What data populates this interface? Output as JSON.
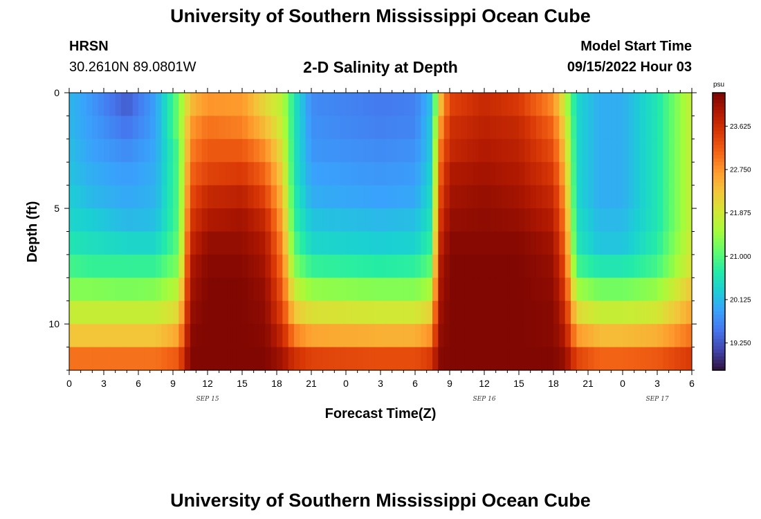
{
  "page": {
    "title": "University of Southern Mississippi Ocean Cube",
    "station": "HRSN",
    "coords": "30.2610N  89.0801W",
    "plot_title": "2-D Salinity at Depth",
    "model_start_label": "Model Start Time",
    "model_start_value": "09/15/2022 Hour 03",
    "footer_title": "University of Southern Mississippi Ocean Cube"
  },
  "chart_data": {
    "type": "heatmap",
    "title": "2-D Salinity at Depth",
    "xlabel": "Forecast Time(Z)",
    "ylabel": "Depth (ft)",
    "x_tick_labels": [
      "0",
      "3",
      "6",
      "9",
      "12",
      "15",
      "18",
      "21",
      "0",
      "3",
      "6",
      "9",
      "12",
      "15",
      "18",
      "21",
      "0",
      "3",
      "6"
    ],
    "date_labels": [
      {
        "label": "SEP 15",
        "hour": 12
      },
      {
        "label": "SEP 16",
        "hour": 36
      },
      {
        "label": "SEP 17",
        "hour": 51
      }
    ],
    "y_tick_labels": [
      "0",
      "5",
      "10"
    ],
    "y_ticks": [
      0,
      5,
      10
    ],
    "y_range": [
      0,
      12
    ],
    "x_range_hours": [
      0,
      54
    ],
    "colorbar": {
      "unit": "psu",
      "labels": [
        "23.625",
        "22.750",
        "21.875",
        "21.000",
        "20.125",
        "19.250"
      ],
      "levels": [
        23.625,
        22.75,
        21.875,
        21.0,
        20.125,
        19.25
      ],
      "range": [
        18.7,
        24.3
      ],
      "colors": [
        "#30123b",
        "#4145ab",
        "#4675ed",
        "#39a2fc",
        "#1bcfd4",
        "#24eca6",
        "#61fc6c",
        "#a4fc3b",
        "#d1e834",
        "#f3c63a",
        "#fe9b2d",
        "#f36315",
        "#d93806",
        "#b11901",
        "#7a0402"
      ]
    },
    "depth_levels_ft": [
      0.5,
      1.5,
      2.5,
      3.5,
      4.5,
      5.5,
      6.5,
      7.5,
      8.5,
      9.5,
      10.5,
      11.5
    ],
    "time_keypoints_hours": [
      0,
      2,
      5,
      7.5,
      9.5,
      10.5,
      12,
      15,
      17,
      18.5,
      19.5,
      21,
      27,
      30,
      31.5,
      32,
      33,
      36,
      39,
      42,
      43,
      44,
      46,
      48,
      51,
      54
    ],
    "salinity_psu": [
      [
        20.1,
        19.8,
        19.3,
        19.9,
        21.2,
        22.4,
        22.75,
        22.7,
        22.1,
        21.7,
        20.6,
        19.7,
        19.55,
        19.6,
        20.2,
        22.1,
        23.4,
        23.7,
        23.5,
        22.8,
        21.8,
        20.4,
        20.0,
        20.0,
        20.6,
        21.8
      ],
      [
        20.1,
        19.85,
        19.5,
        19.9,
        21.2,
        22.7,
        23.0,
        22.9,
        22.4,
        21.8,
        20.6,
        19.75,
        19.6,
        19.65,
        20.3,
        22.5,
        23.6,
        23.8,
        23.7,
        23.1,
        22.1,
        20.4,
        20.0,
        20.0,
        20.6,
        21.8
      ],
      [
        20.15,
        19.9,
        19.7,
        19.95,
        21.0,
        22.9,
        23.2,
        23.2,
        22.8,
        22.0,
        20.6,
        19.8,
        19.7,
        19.75,
        20.3,
        22.8,
        23.7,
        23.9,
        23.8,
        23.3,
        22.3,
        20.4,
        20.0,
        20.0,
        20.6,
        21.8
      ],
      [
        20.2,
        20.0,
        19.85,
        20.0,
        21.0,
        23.1,
        23.4,
        23.5,
        23.1,
        22.2,
        20.6,
        19.9,
        19.8,
        19.85,
        20.4,
        23.0,
        23.9,
        24.0,
        23.9,
        23.5,
        22.5,
        20.4,
        20.0,
        20.0,
        20.6,
        21.8
      ],
      [
        20.3,
        20.1,
        19.95,
        20.05,
        21.0,
        23.3,
        23.7,
        23.8,
        23.4,
        22.4,
        20.7,
        20.0,
        19.9,
        19.95,
        20.5,
        23.2,
        24.0,
        24.1,
        24.0,
        23.7,
        22.7,
        20.4,
        20.0,
        20.0,
        20.6,
        21.8
      ],
      [
        20.4,
        20.3,
        20.1,
        20.15,
        21.0,
        23.5,
        23.9,
        24.0,
        23.7,
        22.6,
        20.8,
        20.2,
        20.1,
        20.15,
        20.6,
        23.4,
        24.1,
        24.15,
        24.1,
        23.85,
        22.9,
        20.5,
        20.1,
        20.1,
        20.6,
        21.8
      ],
      [
        20.6,
        20.5,
        20.4,
        20.4,
        21.1,
        23.7,
        24.1,
        24.1,
        23.9,
        22.8,
        21.0,
        20.4,
        20.3,
        20.35,
        20.8,
        23.6,
        24.2,
        24.2,
        24.2,
        24.0,
        23.1,
        20.6,
        20.2,
        20.2,
        20.7,
        21.9
      ],
      [
        20.9,
        20.8,
        20.8,
        20.8,
        21.3,
        23.9,
        24.2,
        24.2,
        24.0,
        23.0,
        21.3,
        20.8,
        20.7,
        20.75,
        21.1,
        23.8,
        24.25,
        24.25,
        24.25,
        24.1,
        23.3,
        20.9,
        20.6,
        20.6,
        20.9,
        22.0
      ],
      [
        21.3,
        21.3,
        21.25,
        21.3,
        21.7,
        24.0,
        24.25,
        24.25,
        24.1,
        23.2,
        21.8,
        21.4,
        21.3,
        21.3,
        21.6,
        23.9,
        24.25,
        24.25,
        24.25,
        24.15,
        23.5,
        21.5,
        21.2,
        21.2,
        21.4,
        22.3
      ],
      [
        21.8,
        21.8,
        21.8,
        21.8,
        22.1,
        24.1,
        24.25,
        24.25,
        24.15,
        23.4,
        22.3,
        22.0,
        21.9,
        21.9,
        22.2,
        24.0,
        24.25,
        24.25,
        24.25,
        24.2,
        23.7,
        22.1,
        21.8,
        21.8,
        21.9,
        22.6
      ],
      [
        22.3,
        22.3,
        22.3,
        22.3,
        22.6,
        24.2,
        24.25,
        24.25,
        24.2,
        23.7,
        22.9,
        22.6,
        22.5,
        22.5,
        22.8,
        24.1,
        24.25,
        24.25,
        24.25,
        24.2,
        23.9,
        22.7,
        22.4,
        22.4,
        22.5,
        23.0
      ],
      [
        23.0,
        23.0,
        23.0,
        23.0,
        23.2,
        24.25,
        24.25,
        24.25,
        24.25,
        24.0,
        23.6,
        23.4,
        23.3,
        23.3,
        23.5,
        24.2,
        24.25,
        24.25,
        24.25,
        24.25,
        24.1,
        23.4,
        23.1,
        23.1,
        23.2,
        23.5
      ]
    ]
  }
}
